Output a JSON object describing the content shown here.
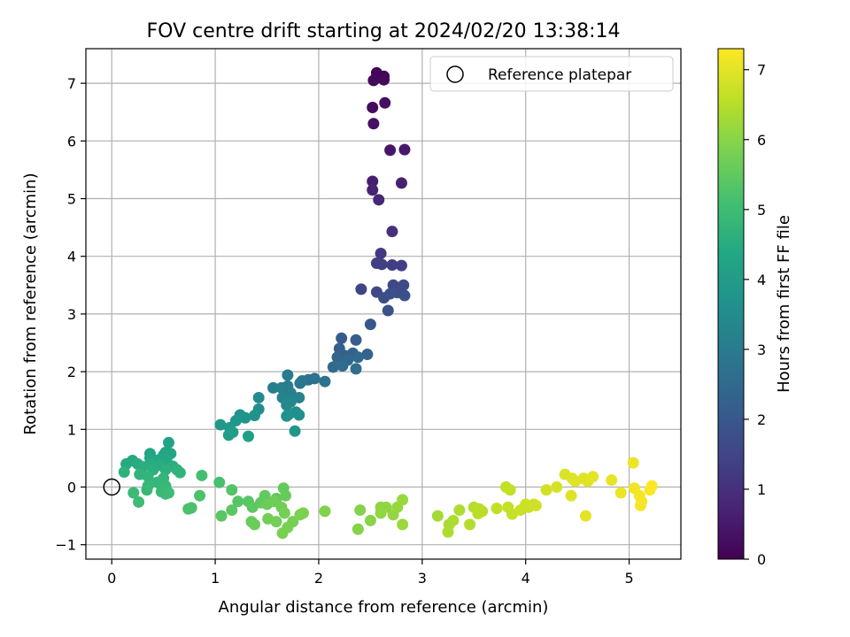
{
  "chart_data": {
    "type": "scatter",
    "title": "FOV centre drift starting at 2024/02/20 13:38:14",
    "xlabel": "Angular distance from reference (arcmin)",
    "ylabel": "Rotation from reference (arcmin)",
    "xlim": [
      -0.25,
      5.5
    ],
    "ylim": [
      -1.25,
      7.6
    ],
    "xticks": [
      0,
      1,
      2,
      3,
      4,
      5
    ],
    "yticks": [
      -1,
      0,
      1,
      2,
      3,
      4,
      5,
      6,
      7
    ],
    "grid": true,
    "legend": {
      "placement": "top-right",
      "entries": [
        "Reference platepar"
      ]
    },
    "reference_point": {
      "x": 0,
      "y": 0,
      "label": "Reference platepar"
    },
    "colorbar": {
      "label": "Hours from first FF file",
      "range": [
        0,
        7.3
      ],
      "ticks": [
        0,
        1,
        2,
        3,
        4,
        5,
        6,
        7
      ],
      "colormap": "viridis"
    },
    "points": [
      [
        2.56,
        7.18,
        0.05
      ],
      [
        2.63,
        7.12,
        0.1
      ],
      [
        2.53,
        7.05,
        0.12
      ],
      [
        2.63,
        7.06,
        0.15
      ],
      [
        2.52,
        6.58,
        0.22
      ],
      [
        2.64,
        6.66,
        0.28
      ],
      [
        2.53,
        6.3,
        0.32
      ],
      [
        2.69,
        5.84,
        0.45
      ],
      [
        2.83,
        5.85,
        0.5
      ],
      [
        2.52,
        5.3,
        0.6
      ],
      [
        2.8,
        5.27,
        0.65
      ],
      [
        2.52,
        5.15,
        0.7
      ],
      [
        2.58,
        4.98,
        0.8
      ],
      [
        2.71,
        4.43,
        1.0
      ],
      [
        2.6,
        4.05,
        1.2
      ],
      [
        2.56,
        3.88,
        1.3
      ],
      [
        2.71,
        3.85,
        1.32
      ],
      [
        2.8,
        3.84,
        1.35
      ],
      [
        2.61,
        3.86,
        1.38
      ],
      [
        2.41,
        3.43,
        1.5
      ],
      [
        2.56,
        3.38,
        1.55
      ],
      [
        2.72,
        3.5,
        1.6
      ],
      [
        2.77,
        3.46,
        1.62
      ],
      [
        2.82,
        3.5,
        1.65
      ],
      [
        2.63,
        3.28,
        1.7
      ],
      [
        2.76,
        3.37,
        1.72
      ],
      [
        2.83,
        3.32,
        1.75
      ],
      [
        2.67,
        3.06,
        1.8
      ],
      [
        2.69,
        3.35,
        1.82
      ],
      [
        2.5,
        2.82,
        2.0
      ],
      [
        2.22,
        2.58,
        2.1
      ],
      [
        2.36,
        2.55,
        2.15
      ],
      [
        2.2,
        2.4,
        2.2
      ],
      [
        2.25,
        2.28,
        2.25
      ],
      [
        2.33,
        2.32,
        2.3
      ],
      [
        2.47,
        2.3,
        2.35
      ],
      [
        2.18,
        2.25,
        2.4
      ],
      [
        2.28,
        2.2,
        2.45
      ],
      [
        2.38,
        2.25,
        2.5
      ],
      [
        2.14,
        2.08,
        2.55
      ],
      [
        2.23,
        2.1,
        2.6
      ],
      [
        2.36,
        2.05,
        2.62
      ],
      [
        1.9,
        1.86,
        2.7
      ],
      [
        1.96,
        1.88,
        2.75
      ],
      [
        2.06,
        1.83,
        2.8
      ],
      [
        1.84,
        1.84,
        2.85
      ],
      [
        1.82,
        1.8,
        2.9
      ],
      [
        1.7,
        1.94,
        3.0
      ],
      [
        1.7,
        1.75,
        3.05
      ],
      [
        1.56,
        1.72,
        3.1
      ],
      [
        1.64,
        1.72,
        3.12
      ],
      [
        1.73,
        1.63,
        3.15
      ],
      [
        1.81,
        1.55,
        3.2
      ],
      [
        1.65,
        1.55,
        3.25
      ],
      [
        1.69,
        1.48,
        3.3
      ],
      [
        1.73,
        1.48,
        3.35
      ],
      [
        1.69,
        1.42,
        3.4
      ],
      [
        1.42,
        1.55,
        3.45
      ],
      [
        1.42,
        1.35,
        3.5
      ],
      [
        1.78,
        1.3,
        3.55
      ],
      [
        1.71,
        1.26,
        3.6
      ],
      [
        1.81,
        1.25,
        3.62
      ],
      [
        1.69,
        1.23,
        3.65
      ],
      [
        1.38,
        1.24,
        3.7
      ],
      [
        1.24,
        1.25,
        3.75
      ],
      [
        1.29,
        1.2,
        3.78
      ],
      [
        1.2,
        1.15,
        3.8
      ],
      [
        1.77,
        0.97,
        3.85
      ],
      [
        1.05,
        1.08,
        3.9
      ],
      [
        1.14,
        1.03,
        3.95
      ],
      [
        1.17,
        0.95,
        4.0
      ],
      [
        1.13,
        0.9,
        4.05
      ],
      [
        1.32,
        0.88,
        4.1
      ],
      [
        0.55,
        0.77,
        4.2
      ],
      [
        0.52,
        0.6,
        4.25
      ],
      [
        0.57,
        0.58,
        4.28
      ],
      [
        0.37,
        0.58,
        4.3
      ],
      [
        0.5,
        0.55,
        4.32
      ],
      [
        0.37,
        0.5,
        4.35
      ],
      [
        0.45,
        0.47,
        4.38
      ],
      [
        0.53,
        0.46,
        4.4
      ],
      [
        0.2,
        0.46,
        4.42
      ],
      [
        0.14,
        0.4,
        4.45
      ],
      [
        0.25,
        0.4,
        4.48
      ],
      [
        0.37,
        0.4,
        4.5
      ],
      [
        0.47,
        0.38,
        4.52
      ],
      [
        0.59,
        0.36,
        4.55
      ],
      [
        0.3,
        0.35,
        4.58
      ],
      [
        0.4,
        0.3,
        4.6
      ],
      [
        0.52,
        0.3,
        4.62
      ],
      [
        0.63,
        0.3,
        4.65
      ],
      [
        0.12,
        0.26,
        4.68
      ],
      [
        0.66,
        0.25,
        4.7
      ],
      [
        0.27,
        0.22,
        4.72
      ],
      [
        0.35,
        0.18,
        4.75
      ],
      [
        0.5,
        0.15,
        4.78
      ],
      [
        0.44,
        0.08,
        4.8
      ],
      [
        0.35,
        0.02,
        4.82
      ],
      [
        0.52,
        0.02,
        4.85
      ],
      [
        0.34,
        -0.05,
        4.88
      ],
      [
        0.48,
        -0.08,
        4.9
      ],
      [
        0.21,
        -0.1,
        4.92
      ],
      [
        0.52,
        -0.12,
        4.94
      ],
      [
        0.55,
        -0.1,
        4.96
      ],
      [
        0.26,
        -0.26,
        4.98
      ],
      [
        0.87,
        0.2,
        5.1
      ],
      [
        1.04,
        0.08,
        5.15
      ],
      [
        0.74,
        -0.38,
        5.18
      ],
      [
        0.77,
        -0.36,
        5.2
      ],
      [
        0.85,
        -0.15,
        5.22
      ],
      [
        1.16,
        -0.05,
        5.3
      ],
      [
        1.22,
        -0.25,
        5.35
      ],
      [
        1.32,
        -0.25,
        5.38
      ],
      [
        1.06,
        -0.5,
        5.4
      ],
      [
        1.16,
        -0.4,
        5.42
      ],
      [
        1.36,
        -0.35,
        5.45
      ],
      [
        1.44,
        -0.27,
        5.48
      ],
      [
        1.48,
        -0.15,
        5.5
      ],
      [
        1.59,
        -0.2,
        5.52
      ],
      [
        1.66,
        -0.02,
        5.55
      ],
      [
        1.68,
        -0.15,
        5.58
      ],
      [
        1.35,
        -0.6,
        5.6
      ],
      [
        1.38,
        -0.65,
        5.62
      ],
      [
        1.5,
        -0.3,
        5.65
      ],
      [
        1.57,
        -0.25,
        5.68
      ],
      [
        1.64,
        -0.35,
        5.7
      ],
      [
        1.51,
        -0.55,
        5.72
      ],
      [
        1.59,
        -0.6,
        5.74
      ],
      [
        1.67,
        -0.45,
        5.76
      ],
      [
        1.75,
        -0.6,
        5.78
      ],
      [
        1.7,
        -0.7,
        5.8
      ],
      [
        1.65,
        -0.8,
        5.82
      ],
      [
        1.82,
        -0.48,
        5.84
      ],
      [
        1.85,
        -0.45,
        5.86
      ],
      [
        2.06,
        -0.42,
        5.9
      ],
      [
        2.4,
        -0.4,
        5.95
      ],
      [
        2.38,
        -0.73,
        5.97
      ],
      [
        2.5,
        -0.58,
        6.0
      ],
      [
        2.6,
        -0.35,
        6.05
      ],
      [
        2.65,
        -0.35,
        6.08
      ],
      [
        2.6,
        -0.45,
        6.1
      ],
      [
        2.72,
        -0.48,
        6.12
      ],
      [
        2.76,
        -0.35,
        6.15
      ],
      [
        2.81,
        -0.22,
        6.18
      ],
      [
        2.81,
        -0.65,
        6.2
      ],
      [
        3.15,
        -0.5,
        6.3
      ],
      [
        3.26,
        -0.65,
        6.35
      ],
      [
        3.3,
        -0.58,
        6.38
      ],
      [
        3.25,
        -0.78,
        6.4
      ],
      [
        3.36,
        -0.4,
        6.42
      ],
      [
        3.46,
        -0.65,
        6.45
      ],
      [
        3.5,
        -0.35,
        6.48
      ],
      [
        3.55,
        -0.38,
        6.5
      ],
      [
        3.58,
        -0.42,
        6.52
      ],
      [
        3.54,
        -0.46,
        6.54
      ],
      [
        3.72,
        -0.37,
        6.6
      ],
      [
        3.81,
        0.0,
        6.62
      ],
      [
        3.85,
        -0.05,
        6.64
      ],
      [
        3.83,
        -0.35,
        6.66
      ],
      [
        3.87,
        -0.47,
        6.68
      ],
      [
        3.95,
        -0.4,
        6.7
      ],
      [
        4.0,
        -0.3,
        6.72
      ],
      [
        4.03,
        -0.35,
        6.74
      ],
      [
        4.08,
        -0.3,
        6.76
      ],
      [
        4.1,
        -0.32,
        6.78
      ],
      [
        4.2,
        -0.05,
        6.8
      ],
      [
        4.3,
        0.0,
        6.85
      ],
      [
        4.38,
        0.22,
        6.9
      ],
      [
        4.45,
        0.15,
        6.92
      ],
      [
        4.48,
        0.1,
        6.94
      ],
      [
        4.44,
        -0.15,
        6.95
      ],
      [
        4.56,
        0.15,
        6.96
      ],
      [
        4.6,
        0.1,
        6.98
      ],
      [
        4.65,
        0.18,
        7.0
      ],
      [
        4.58,
        -0.5,
        7.02
      ],
      [
        4.83,
        0.12,
        7.05
      ],
      [
        4.92,
        -0.1,
        7.08
      ],
      [
        5.04,
        0.42,
        7.12
      ],
      [
        5.05,
        -0.02,
        7.15
      ],
      [
        5.1,
        -0.15,
        7.18
      ],
      [
        5.12,
        -0.25,
        7.2
      ],
      [
        5.11,
        -0.32,
        7.22
      ],
      [
        5.2,
        -0.05,
        7.25
      ],
      [
        5.22,
        0.02,
        7.3
      ]
    ]
  }
}
